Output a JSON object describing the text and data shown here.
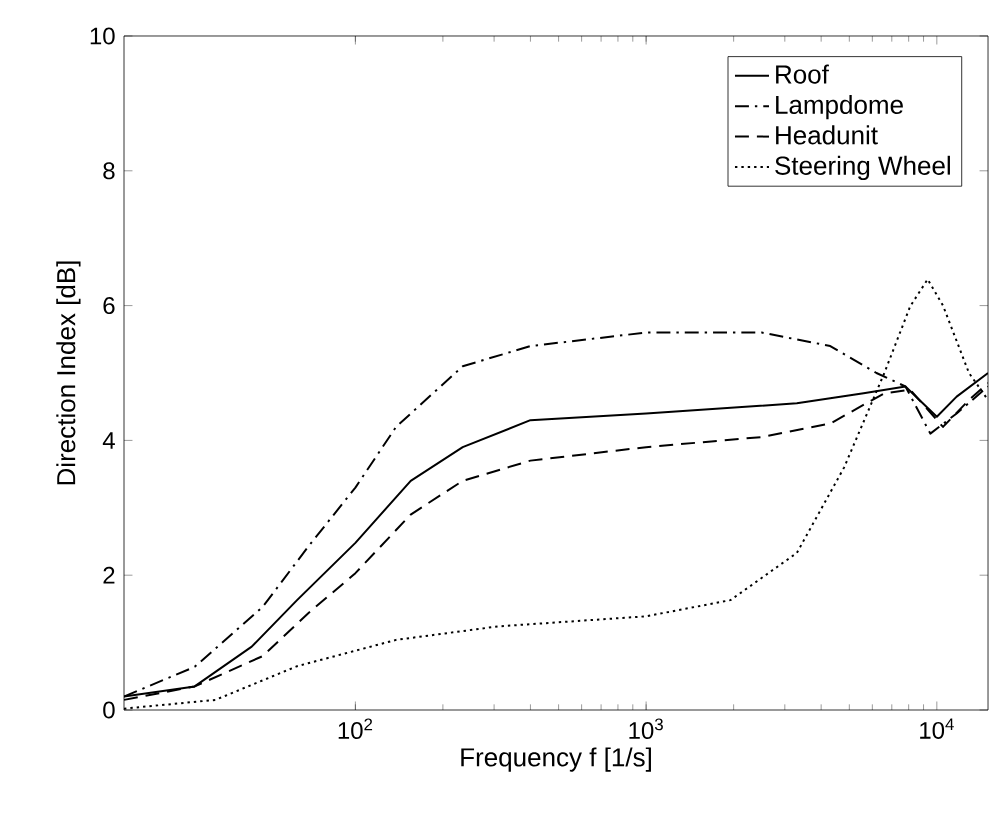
{
  "chart_data": {
    "type": "line",
    "xlabel": "Frequency f [1/s]",
    "ylabel": "Direction Index [dB]",
    "log": "x",
    "xlim": [
      16,
      15000
    ],
    "ylim": [
      0,
      10
    ],
    "xticks": [
      {
        "value": 100,
        "label": "10$^{2}$"
      },
      {
        "value": 1000,
        "label": "10$^{3}$"
      },
      {
        "value": 10000,
        "label": "10$^{4}$"
      }
    ],
    "yticks": [
      0,
      2,
      4,
      6,
      8,
      10
    ],
    "grid": false,
    "legend": "top right",
    "marker": "none",
    "series": [
      {
        "name": "Roof",
        "color": "#000000",
        "line_style": "solid",
        "x": [
          16,
          28,
          44,
          63,
          100,
          155,
          234,
          400,
          1000,
          3300,
          5600,
          7800,
          10000,
          11700,
          15000
        ],
        "values": [
          0.2,
          0.35,
          0.94,
          1.63,
          2.48,
          3.4,
          3.9,
          4.3,
          4.4,
          4.55,
          4.7,
          4.8,
          4.35,
          4.65,
          5.0
        ]
      },
      {
        "name": "Lampdome",
        "color": "#000000",
        "line_style": "dashdot",
        "x": [
          16,
          28,
          48,
          69,
          100,
          138,
          234,
          400,
          1000,
          2500,
          4300,
          6200,
          7800,
          9500,
          11700,
          15000
        ],
        "values": [
          0.2,
          0.64,
          1.53,
          2.43,
          3.3,
          4.2,
          5.1,
          5.4,
          5.6,
          5.6,
          5.4,
          5.0,
          4.8,
          4.1,
          4.4,
          4.8
        ]
      },
      {
        "name": "Headunit",
        "color": "#000000",
        "line_style": "dashed",
        "x": [
          16,
          28,
          48,
          69,
          100,
          155,
          234,
          400,
          1000,
          2500,
          4300,
          6600,
          8100,
          10500,
          12900,
          15000
        ],
        "values": [
          0.15,
          0.35,
          0.8,
          1.44,
          2.03,
          2.9,
          3.4,
          3.7,
          3.9,
          4.05,
          4.25,
          4.7,
          4.75,
          4.2,
          4.6,
          4.85
        ]
      },
      {
        "name": "Steering Wheel",
        "color": "#000000",
        "line_style": "dotted",
        "x": [
          16,
          33,
          63,
          138,
          309,
          1000,
          1950,
          3300,
          4800,
          6600,
          8100,
          9300,
          10500,
          12900,
          15000
        ],
        "values": [
          0.02,
          0.15,
          0.65,
          1.04,
          1.24,
          1.39,
          1.63,
          2.33,
          3.6,
          5.0,
          5.99,
          6.39,
          6.0,
          5.0,
          4.6
        ]
      }
    ]
  }
}
